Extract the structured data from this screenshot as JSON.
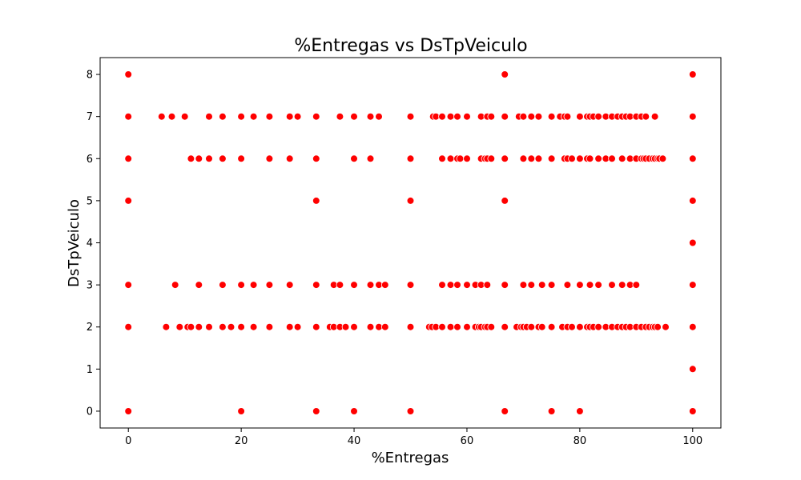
{
  "chart_data": {
    "type": "scatter",
    "title": "%Entregas vs DsTpVeiculo",
    "xlabel": "%Entregas",
    "ylabel": "DsTpVeiculo",
    "xlim": [
      -5,
      105
    ],
    "ylim": [
      -0.4,
      8.4
    ],
    "xticks": [
      0,
      20,
      40,
      60,
      80,
      100
    ],
    "yticks": [
      0,
      1,
      2,
      3,
      4,
      5,
      6,
      7,
      8
    ],
    "grid": false,
    "marker_color": "#ff0000",
    "marker_edge_color": "#ffffff",
    "points": [
      {
        "y": 8,
        "x": [
          0,
          66.7,
          100
        ]
      },
      {
        "y": 7,
        "x": [
          0,
          5.9,
          7.7,
          10,
          14.3,
          16.7,
          20,
          22.2,
          25,
          28.6,
          30,
          33.3,
          37.5,
          40,
          42.9,
          44.4,
          50,
          54,
          54.5,
          55.6,
          57.1,
          58.3,
          60,
          62.5,
          63.6,
          64.3,
          66.7,
          69.2,
          70,
          71.4,
          72.7,
          75,
          76.5,
          77.3,
          77.8,
          80,
          81.3,
          81.8,
          82.4,
          83.3,
          84.6,
          85.7,
          86.7,
          87.5,
          88.2,
          88.9,
          90,
          90.9,
          91.7,
          93.3,
          100
        ]
      },
      {
        "y": 6,
        "x": [
          0,
          11.1,
          12.5,
          14.3,
          16.7,
          20,
          25,
          28.6,
          33.3,
          40,
          42.9,
          50,
          55.6,
          57.1,
          58.3,
          58.8,
          60,
          62.5,
          63.2,
          63.6,
          64.3,
          66.7,
          70,
          71.4,
          72.7,
          75,
          77.3,
          77.8,
          78.6,
          80,
          81.3,
          81.8,
          83.3,
          84.6,
          85.7,
          87.5,
          88.9,
          90,
          90.9,
          91.3,
          91.7,
          92.3,
          92.9,
          93.3,
          93.8,
          94.1,
          94.7,
          100
        ]
      },
      {
        "y": 5,
        "x": [
          0,
          33.3,
          50,
          66.7,
          100
        ]
      },
      {
        "y": 4,
        "x": [
          100
        ]
      },
      {
        "y": 3,
        "x": [
          0,
          8.3,
          12.5,
          16.7,
          20,
          22.2,
          25,
          28.6,
          33.3,
          36.4,
          37.5,
          40,
          42.9,
          44.4,
          45.5,
          50,
          55.6,
          57.1,
          58.3,
          60,
          61.5,
          62.5,
          63.6,
          66.7,
          70,
          71.4,
          73.3,
          75,
          77.8,
          80,
          81.8,
          83.3,
          85.7,
          87.5,
          88.9,
          90,
          100
        ]
      },
      {
        "y": 2,
        "x": [
          0,
          6.7,
          9.1,
          10.5,
          11.1,
          12.5,
          14.3,
          16.7,
          18.2,
          20,
          22.2,
          25,
          28.6,
          30,
          33.3,
          35.7,
          36.4,
          37.5,
          38.5,
          40,
          42.9,
          44.4,
          45.5,
          50,
          53.3,
          53.8,
          54.5,
          55.6,
          57.1,
          58.3,
          60,
          61.5,
          62.1,
          62.5,
          63.2,
          63.6,
          64.3,
          66.7,
          68.8,
          69.6,
          70,
          70.6,
          71.4,
          72.7,
          73.3,
          75,
          76.9,
          77.8,
          78.6,
          80,
          81.3,
          81.8,
          82.4,
          83.3,
          84.6,
          85.7,
          86.7,
          87.5,
          88.2,
          88.9,
          90,
          90.9,
          91.7,
          92.3,
          92.9,
          93.3,
          93.8,
          95.2,
          100
        ]
      },
      {
        "y": 1,
        "x": [
          100
        ]
      },
      {
        "y": 0,
        "x": [
          0,
          20,
          33.3,
          40,
          50,
          66.7,
          75,
          80,
          100
        ]
      }
    ]
  }
}
